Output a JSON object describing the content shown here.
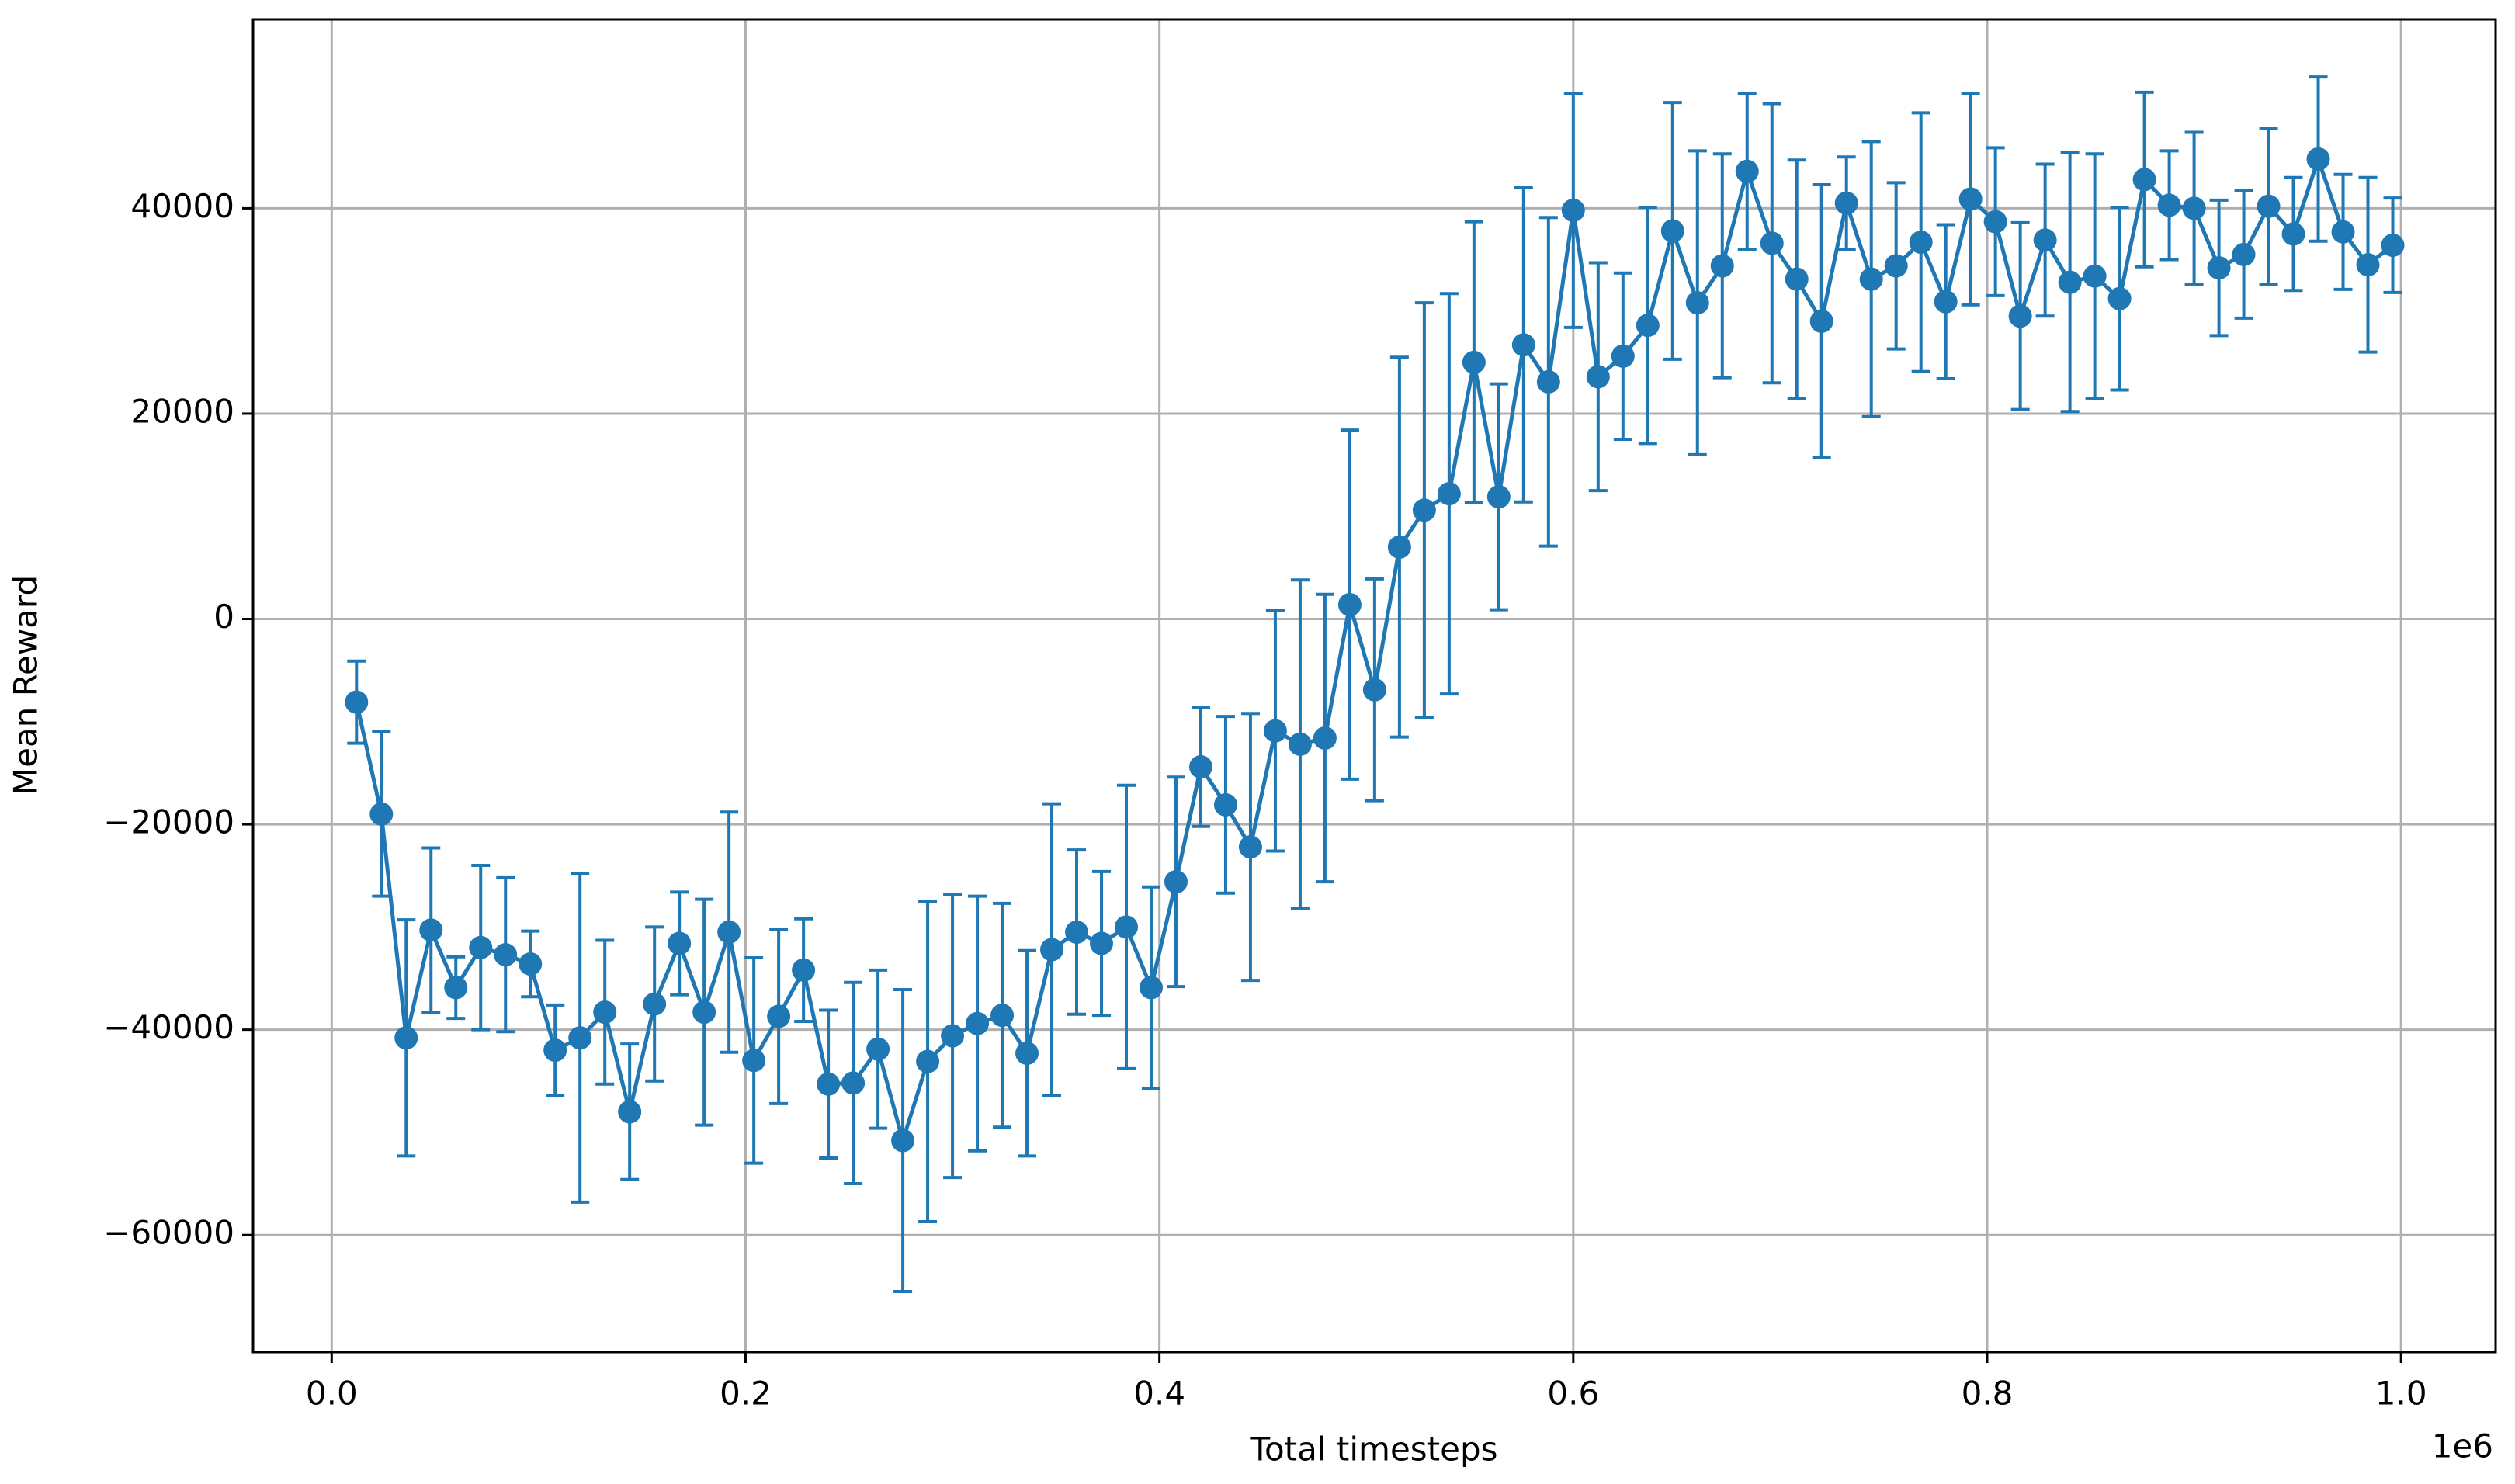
{
  "chart_data": {
    "type": "errorbar",
    "x_label": "Total timesteps",
    "y_label": "Mean Reward",
    "x_offset_label": "1e6",
    "x": [
      12000,
      24000,
      36000,
      48000,
      60000,
      72000,
      84000,
      96000,
      108000,
      120000,
      132000,
      144000,
      156000,
      168000,
      180000,
      192000,
      204000,
      216000,
      228000,
      240000,
      252000,
      264000,
      276000,
      288000,
      300000,
      312000,
      324000,
      336000,
      348000,
      360000,
      372000,
      384000,
      396000,
      408000,
      420000,
      432000,
      444000,
      456000,
      468000,
      480000,
      492000,
      504000,
      516000,
      528000,
      540000,
      552000,
      564000,
      576000,
      588000,
      600000,
      612000,
      624000,
      636000,
      648000,
      660000,
      672000,
      684000,
      696000,
      708000,
      720000,
      732000,
      744000,
      756000,
      768000,
      780000,
      792000,
      804000,
      816000,
      828000,
      840000,
      852000,
      864000,
      876000,
      888000,
      900000,
      912000,
      924000,
      936000,
      948000,
      960000,
      972000,
      984000,
      996000
    ],
    "series": [
      {
        "color": "#1f77b4",
        "values": [
          -8100,
          -19000,
          -40800,
          -30300,
          -35900,
          -32000,
          -32700,
          -33600,
          -42000,
          -40800,
          -38300,
          -48000,
          -37500,
          -31600,
          -38300,
          -30500,
          -43000,
          -38700,
          -34200,
          -45300,
          -45200,
          -41900,
          -50800,
          -43100,
          -40600,
          -39400,
          -38600,
          -42300,
          -32200,
          -30500,
          -31600,
          -30000,
          -35900,
          -25600,
          -14400,
          -18100,
          -22200,
          -10900,
          -12200,
          -11600,
          1400,
          -6900,
          7000,
          10600,
          12200,
          25000,
          11900,
          26700,
          23100,
          39800,
          23600,
          25600,
          28600,
          37800,
          30800,
          34400,
          43600,
          36600,
          33100,
          29000,
          40500,
          33100,
          34400,
          36700,
          30900,
          40900,
          38700,
          29500,
          36900,
          32800,
          33400,
          31200,
          42800,
          40300,
          40000,
          34200,
          35500,
          40200,
          37500,
          44800,
          37700,
          34500,
          36400
        ],
        "errors": [
          4000,
          8000,
          11500,
          8000,
          3000,
          8000,
          7500,
          3200,
          4400,
          16000,
          7000,
          6600,
          7500,
          5000,
          11000,
          11700,
          10000,
          8500,
          5000,
          7200,
          9800,
          7700,
          14700,
          15600,
          13800,
          12400,
          10900,
          10000,
          14200,
          8000,
          7000,
          13800,
          9800,
          10200,
          5800,
          8600,
          13000,
          11700,
          16000,
          14000,
          17000,
          10800,
          18500,
          20200,
          19500,
          13700,
          11000,
          15300,
          16000,
          11400,
          11100,
          8100,
          11500,
          12500,
          14800,
          10900,
          7600,
          13600,
          11600,
          13300,
          4500,
          13400,
          8100,
          12600,
          7500,
          10300,
          7200,
          9100,
          7400,
          12600,
          11900,
          8900,
          8500,
          5300,
          7400,
          6600,
          6200,
          7600,
          5500,
          8000,
          5600,
          8500,
          4600
        ]
      }
    ],
    "xlim": [
      -38000,
      1045700
    ],
    "xticks": [
      {
        "value": 0,
        "label": "0.0"
      },
      {
        "value": 200000,
        "label": "0.2"
      },
      {
        "value": 400000,
        "label": "0.4"
      },
      {
        "value": 600000,
        "label": "0.6"
      },
      {
        "value": 800000,
        "label": "0.8"
      },
      {
        "value": 1000000,
        "label": "1.0"
      }
    ],
    "ylim": [
      -71400,
      58400
    ],
    "yticks": [
      {
        "value": -60000,
        "label": "−60000"
      },
      {
        "value": -40000,
        "label": "−40000"
      },
      {
        "value": -20000,
        "label": "−20000"
      },
      0,
      20000,
      40000
    ],
    "grid": true
  }
}
